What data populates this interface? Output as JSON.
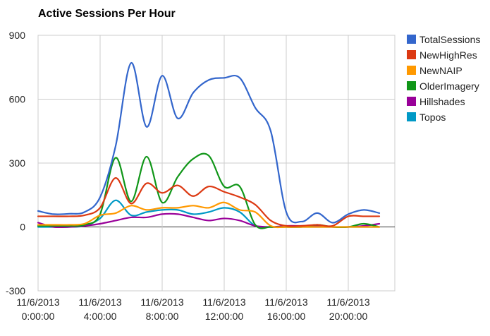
{
  "chart_data": {
    "type": "line",
    "title": "Active Sessions Per Hour",
    "xlabel": "",
    "ylabel": "",
    "ylim": [
      -300,
      900
    ],
    "yticks": [
      -300,
      0,
      300,
      600,
      900
    ],
    "xlim": [
      0,
      23
    ],
    "x_ticks": [
      {
        "x": 0,
        "date": "11/6/2013",
        "time": "0:00:00"
      },
      {
        "x": 4,
        "date": "11/6/2013",
        "time": "4:00:00"
      },
      {
        "x": 8,
        "date": "11/6/2013",
        "time": "8:00:00"
      },
      {
        "x": 12,
        "date": "11/6/2013",
        "time": "12:00:00"
      },
      {
        "x": 16,
        "date": "11/6/2013",
        "time": "16:00:00"
      },
      {
        "x": 20,
        "date": "11/6/2013",
        "time": "20:00:00"
      }
    ],
    "grid": true,
    "legend_position": "right",
    "x": [
      0,
      1,
      2,
      3,
      4,
      5,
      6,
      7,
      8,
      9,
      10,
      11,
      12,
      13,
      14,
      15,
      16,
      17,
      18,
      19,
      20,
      21,
      22,
      23
    ],
    "series": [
      {
        "name": "TotalSessions",
        "color": "#3366cc",
        "values": [
          75,
          60,
          62,
          70,
          140,
          380,
          770,
          470,
          710,
          510,
          630,
          690,
          700,
          700,
          560,
          450,
          70,
          25,
          65,
          20,
          60,
          80,
          65,
          null
        ]
      },
      {
        "name": "NewHighRes",
        "color": "#dc3912",
        "values": [
          50,
          50,
          50,
          55,
          90,
          230,
          110,
          205,
          160,
          195,
          145,
          190,
          165,
          140,
          105,
          30,
          5,
          5,
          10,
          5,
          50,
          50,
          50,
          null
        ]
      },
      {
        "name": "NewNAIP",
        "color": "#ff9900",
        "values": [
          10,
          10,
          10,
          15,
          55,
          65,
          100,
          80,
          90,
          90,
          100,
          90,
          115,
          80,
          70,
          5,
          0,
          0,
          0,
          0,
          0,
          0,
          0,
          null
        ]
      },
      {
        "name": "OlderImagery",
        "color": "#109618",
        "values": [
          5,
          5,
          5,
          10,
          60,
          325,
          120,
          330,
          115,
          235,
          320,
          335,
          190,
          190,
          10,
          0,
          0,
          0,
          10,
          0,
          0,
          15,
          0,
          null
        ]
      },
      {
        "name": "Hillshades",
        "color": "#990099",
        "values": [
          20,
          0,
          0,
          5,
          15,
          30,
          45,
          45,
          60,
          60,
          45,
          30,
          40,
          30,
          5,
          0,
          5,
          5,
          5,
          0,
          0,
          5,
          15,
          null
        ]
      },
      {
        "name": "Topos",
        "color": "#0099c6",
        "values": [
          0,
          0,
          0,
          5,
          40,
          125,
          55,
          70,
          80,
          80,
          60,
          70,
          90,
          70,
          5,
          0,
          0,
          0,
          0,
          0,
          0,
          0,
          0,
          null
        ]
      }
    ]
  }
}
